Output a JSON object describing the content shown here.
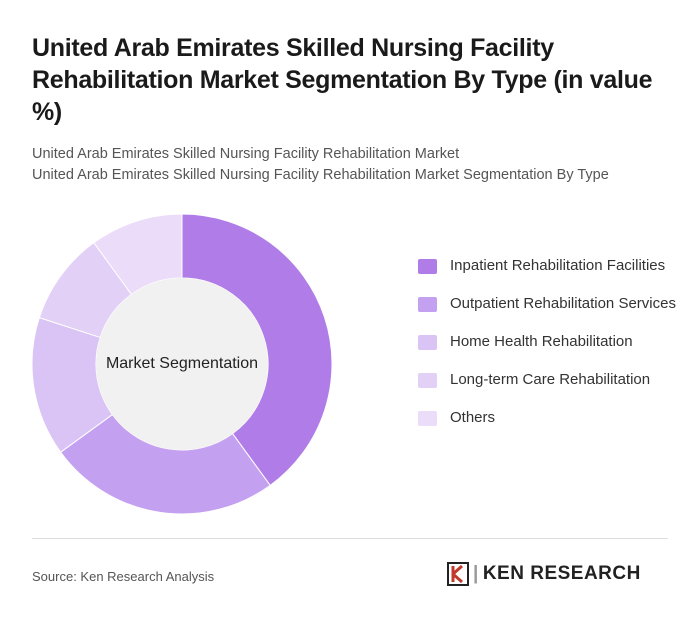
{
  "chart_data": {
    "type": "donut",
    "title": "United Arab Emirates Skilled Nursing Facility Rehabilitation Market Segmentation By Type (in value %)",
    "subtitle": [
      "United Arab Emirates Skilled Nursing Facility Rehabilitation Market",
      "United Arab Emirates Skilled Nursing Facility Rehabilitation Market Segmentation By Type"
    ],
    "center_label": "Market Segmentation",
    "categories": [
      "Inpatient Rehabilitation Facilities",
      "Outpatient Rehabilitation Services",
      "Home Health Rehabilitation",
      "Long-term Care Rehabilitation",
      "Others"
    ],
    "values": [
      40,
      25,
      15,
      10,
      10
    ],
    "colors": [
      "#b07de8",
      "#c4a0f0",
      "#dac4f5",
      "#e2d0f7",
      "#ebdcfa"
    ]
  },
  "footer": {
    "source": "Source: Ken Research Analysis",
    "brand": "KEN RESEARCH"
  }
}
